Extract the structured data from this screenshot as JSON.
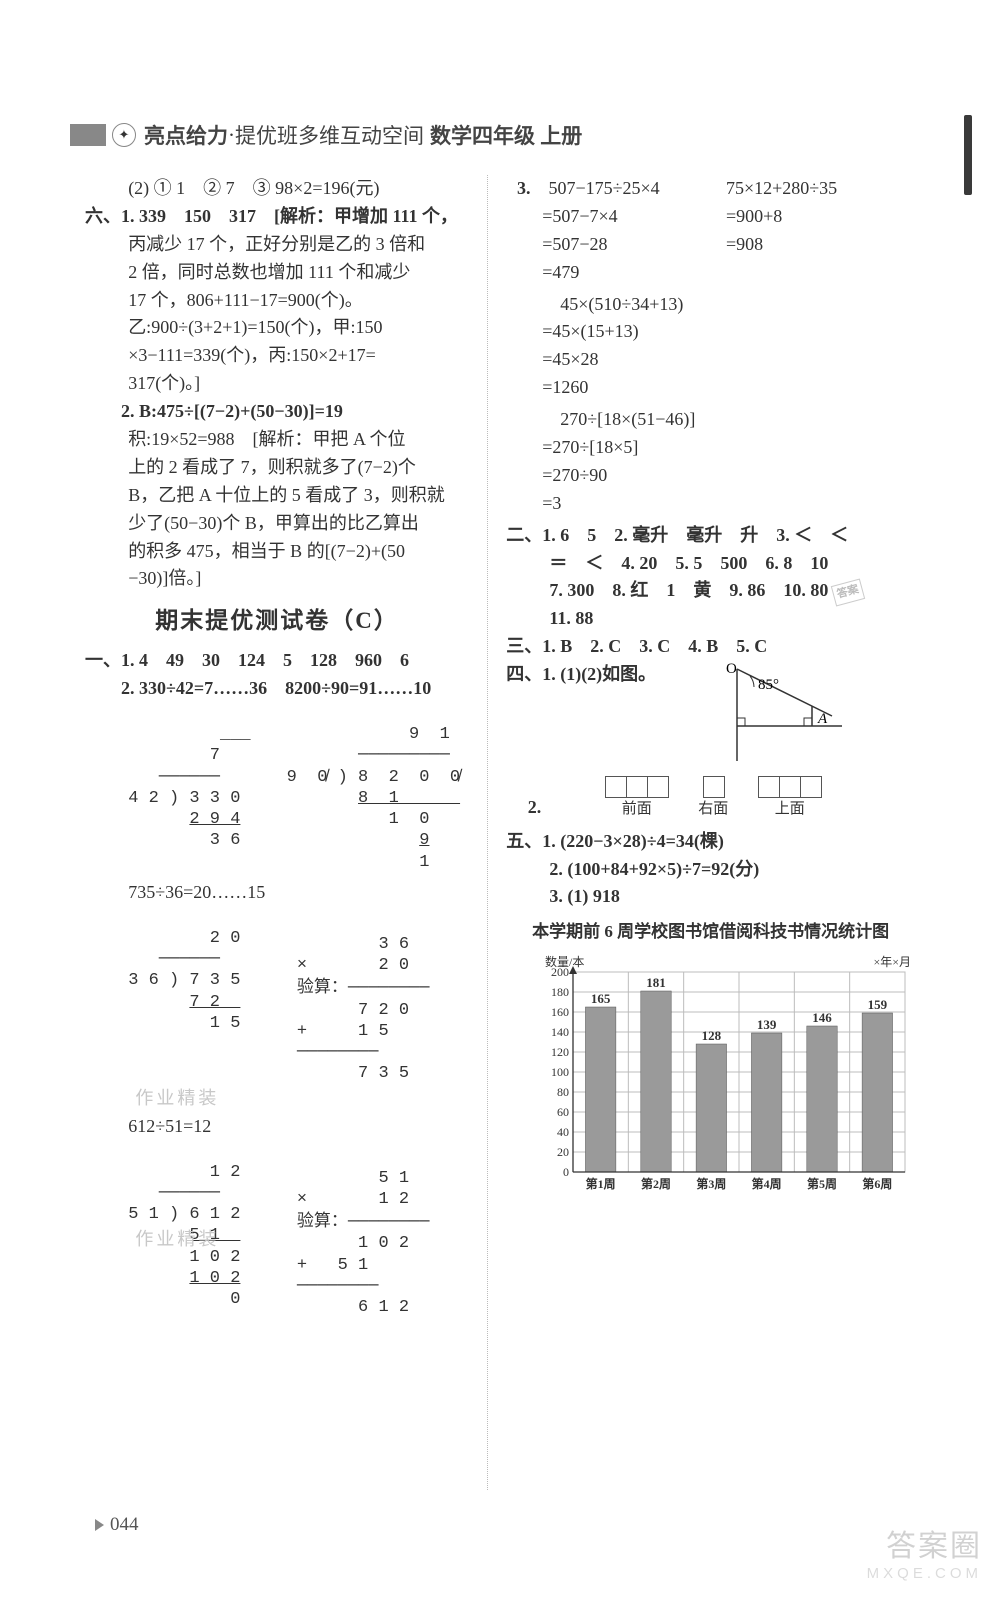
{
  "header": {
    "brand_bold": "亮点给力",
    "brand_sep": "·",
    "brand_rest": "提优班多维互动空间",
    "subject": "数学四年级 上册"
  },
  "page_number": "044",
  "watermark": {
    "main": "答案圈",
    "sub": "MXQE.COM"
  },
  "light_watermark_1": "作业精装",
  "light_watermark_2": "作业精装",
  "left": {
    "preline": "(2) ① 1　② 7　③ 98×2=196(元)",
    "six": {
      "label": "六、",
      "item1_head": "1. 339　150　317　[解析：甲增加 111 个，",
      "item1_body": [
        "丙减少 17 个，正好分别是乙的 3 倍和",
        "2 倍，同时总数也增加 111 个和减少",
        "17 个，806+111−17=900(个)。",
        "乙:900÷(3+2+1)=150(个)，甲:150",
        "×3−111=339(个)，丙:150×2+17=",
        "317(个)。]"
      ],
      "item2_head": "2. B:475÷[(7−2)+(50−30)]=19",
      "item2_body": [
        "积:19×52=988　[解析：甲把 A 个位",
        "上的 2 看成了 7，则积就多了(7−2)个",
        "B，乙把 A 十位上的 5 看成了 3，则积就",
        "少了(50−30)个 B，甲算出的比乙算出",
        "的积多 475，相当于 B 的[(7−2)+(50",
        "−30)]倍。]"
      ]
    },
    "section_title": "期末提优测试卷（C）",
    "one": {
      "label": "一、",
      "l1": "1. 4　49　30　124　5　128　960　6",
      "l2": "2. 330÷42=7……36　8200÷90=91……10",
      "div_eq_1": "735÷36=20……15",
      "div_eq_2": "612÷51=12",
      "verify_label": "验算："
    }
  },
  "right": {
    "three": {
      "num": "3.",
      "row1a": "507−175÷25×4",
      "row1b": "75×12+280÷35",
      "row2a": "=507−7×4",
      "row2b": "=900+8",
      "row3a": "=507−28",
      "row3b": "=908",
      "row4a": "=479",
      "block2": [
        "　45×(510÷34+13)",
        "=45×(15+13)",
        "=45×28",
        "=1260"
      ],
      "block3": [
        "　270÷[18×(51−46)]",
        "=270÷[18×5]",
        "=270÷90",
        "=3"
      ]
    },
    "two": {
      "label": "二、",
      "l1": "1. 6　5　2. 毫升　毫升　升　3. ＜　＜",
      "l2": "＝　＜　4. 20　5. 5　500　6. 8　10",
      "l3": "7. 300　8. 红　1　黄　9. 86　10. 80",
      "l4": "11. 88"
    },
    "three2": {
      "label": "三、",
      "line": "1. B　2. C　3. C　4. B　5. C"
    },
    "four": {
      "label": "四、",
      "l1": "1. (1)(2)如图。",
      "angle_O": "O",
      "angle_val": "85°",
      "angle_A": "A",
      "l2num": "2.",
      "views": {
        "front": "前面",
        "right": "右面",
        "top": "上面"
      }
    },
    "five": {
      "label": "五、",
      "l1": "1. (220−3×28)÷4=34(棵)",
      "l2": "2. (100+84+92×5)÷7=92(分)",
      "l3": "3. (1) 918"
    },
    "chart": {
      "title": "本学期前 6 周学校图书馆借阅科技书情况统计图",
      "y_label": "数量/本",
      "date_label": "×年×月",
      "y_max": 200,
      "y_step": 20,
      "categories": [
        "第1周",
        "第2周",
        "第3周",
        "第4周",
        "第5周",
        "第6周"
      ],
      "values": [
        165,
        181,
        128,
        139,
        146,
        159
      ],
      "bar_color": "#9a9a9a",
      "grid_color": "#bcbcbc",
      "bg_color": "#ffffff",
      "axis_fontsize": 12,
      "value_fontsize": 13,
      "bar_width": 0.55
    }
  }
}
